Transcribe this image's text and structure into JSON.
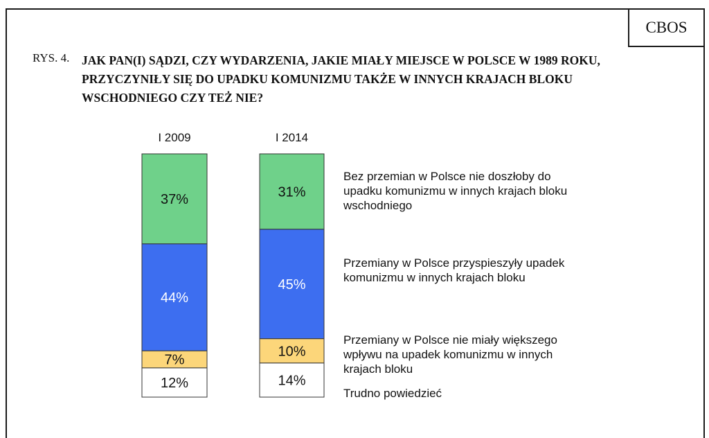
{
  "source_label": "CBOS",
  "figure": {
    "number": "RYS. 4.",
    "title": "JAK PAN(I) SĄDZI, CZY WYDARZENIA, JAKIE MIAŁY MIEJSCE W POLSCE W 1989 ROKU, PRZYCZYNIŁY SIĘ DO UPADKU KOMUNIZMU TAKŻE W INNYCH KRAJACH BLOKU WSCHODNIEGO CZY TEŻ NIE?"
  },
  "chart_data": {
    "type": "bar",
    "stacked": true,
    "percent": true,
    "categories": [
      "I 2009",
      "I 2014"
    ],
    "series": [
      {
        "name": "Bez przemian w Polsce nie doszłoby do upadku komunizmu w innych krajach bloku wschodniego",
        "values": [
          37,
          31
        ],
        "labels": [
          "37%",
          "31%"
        ],
        "color": "#6fd18a",
        "text_color": "#111111"
      },
      {
        "name": "Przemiany w Polsce przyspieszyły upadek komunizmu w innych krajach bloku",
        "values": [
          44,
          45
        ],
        "labels": [
          "44%",
          "45%"
        ],
        "color": "#3d6ef0",
        "text_color": "#ffffff"
      },
      {
        "name": "Przemiany w Polsce nie miały większego wpływu na upadek komunizmu w innych krajach bloku",
        "values": [
          7,
          10
        ],
        "labels": [
          "7%",
          "10%"
        ],
        "color": "#fcd67a",
        "text_color": "#111111"
      },
      {
        "name": "Trudno powiedzieć",
        "values": [
          12,
          14
        ],
        "labels": [
          "12%",
          "14%"
        ],
        "color": "#ffffff",
        "text_color": "#111111"
      }
    ],
    "ylim": [
      0,
      100
    ],
    "legend_position": "right"
  }
}
